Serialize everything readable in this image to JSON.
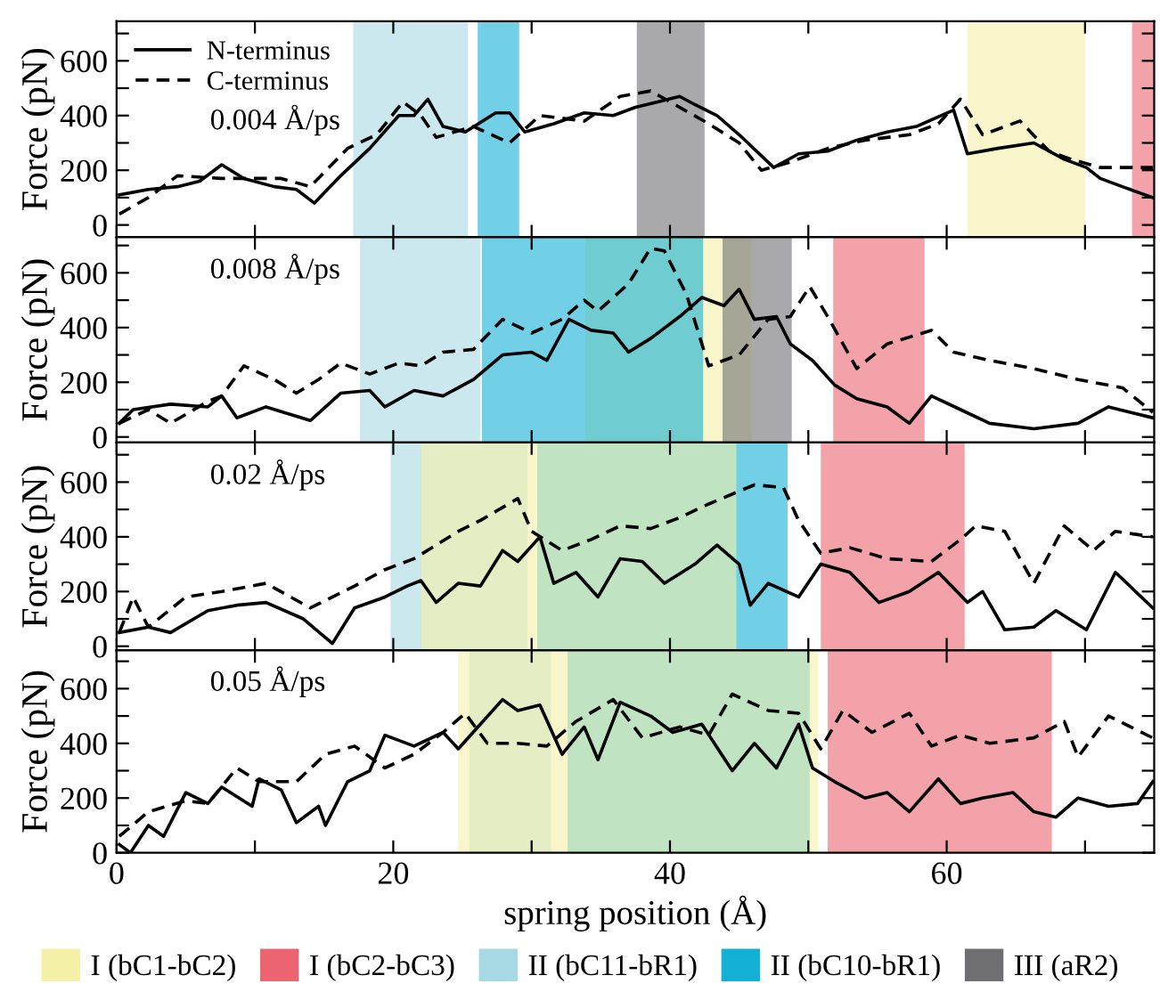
{
  "chart_data": [
    {
      "type": "line",
      "ylabel": "Force (pN)",
      "annotations": [
        "0.004 Å/ps"
      ],
      "legend": "top left",
      "tick_labels": "y",
      "xlim": [
        0,
        75
      ],
      "xticks": [
        {
          "value": 0,
          "label": null
        },
        {
          "value": 10,
          "label": null
        },
        {
          "value": 20,
          "label": null
        },
        {
          "value": 30,
          "label": null
        },
        {
          "value": 40,
          "label": null
        },
        {
          "value": 50,
          "label": null
        },
        {
          "value": 60,
          "label": null
        },
        {
          "value": 70,
          "label": null
        }
      ],
      "ylim": [
        -45,
        745
      ],
      "yticks": [
        0,
        {
          "value": 100,
          "label": null
        },
        200,
        {
          "value": 300,
          "label": null
        },
        400,
        {
          "value": 500,
          "label": null
        },
        600,
        {
          "value": 700,
          "label": null
        }
      ],
      "bands": [
        {
          "axis": "x",
          "from": 61.5,
          "to": 70.0,
          "color": "#f5f0a8"
        },
        {
          "axis": "x",
          "from": 73.4,
          "to": 75,
          "color": "#ec6470"
        },
        {
          "axis": "x",
          "from": 17.1,
          "to": 25.4,
          "color": "#a6d9e3"
        },
        {
          "axis": "x",
          "from": 26.1,
          "to": 29.1,
          "color": "#12b0d4"
        },
        {
          "axis": "x",
          "from": 37.6,
          "to": 42.5,
          "color": "#6f6f73"
        }
      ],
      "series": [
        {
          "name": "N-terminus",
          "color": "#000000",
          "line_style": "solid",
          "x": [
            0.2,
            2.3,
            4.4,
            6.0,
            7.6,
            9.2,
            11.4,
            13.0,
            14.3,
            16.2,
            18.3,
            20.4,
            21.5,
            22.5,
            23.6,
            25.2,
            27.4,
            28.4,
            29.5,
            31.6,
            33.8,
            35.9,
            37.5,
            39.1,
            40.7,
            41.8,
            43.4,
            45.0,
            47.5,
            49.3,
            51.4,
            53.5,
            55.7,
            57.8,
            60.5,
            61.5,
            63.7,
            66.3,
            68.5,
            70.1,
            71.1,
            72.7,
            74.9
          ],
          "values": [
            110,
            130,
            140,
            160,
            220,
            170,
            140,
            130,
            80,
            180,
            280,
            400,
            400,
            460,
            360,
            340,
            410,
            410,
            340,
            370,
            410,
            400,
            430,
            450,
            470,
            440,
            400,
            330,
            210,
            260,
            270,
            310,
            340,
            360,
            420,
            260,
            280,
            300,
            240,
            210,
            170,
            140,
            100
          ]
        },
        {
          "name": "C-terminus",
          "color": "#000000",
          "line_style": "dashed",
          "x": [
            0.2,
            2.3,
            4.4,
            7.6,
            11.9,
            14.0,
            16.7,
            18.8,
            20.7,
            22.0,
            23.1,
            25.8,
            28.4,
            30.6,
            33.8,
            36.4,
            38.6,
            40.7,
            42.8,
            45.0,
            46.6,
            48.7,
            51.4,
            54.1,
            57.3,
            59.4,
            61.0,
            62.6,
            65.3,
            67.4,
            69.0,
            71.1,
            74.9
          ],
          "values": [
            40,
            100,
            180,
            170,
            170,
            140,
            280,
            330,
            450,
            400,
            320,
            360,
            300,
            400,
            380,
            470,
            490,
            430,
            370,
            300,
            200,
            230,
            280,
            310,
            330,
            370,
            460,
            330,
            380,
            270,
            240,
            210,
            210
          ]
        }
      ]
    },
    {
      "type": "line",
      "ylabel": "Force (pN)",
      "annotations": [
        "0.008 Å/ps"
      ],
      "tick_labels": "y",
      "legend": "bottom",
      "xlim": [
        0,
        75
      ],
      "xticks": [
        {
          "value": 0,
          "label": null
        },
        {
          "value": 10,
          "label": null
        },
        {
          "value": 20,
          "label": null
        },
        {
          "value": 30,
          "label": null
        },
        {
          "value": 40,
          "label": null
        },
        {
          "value": 50,
          "label": null
        },
        {
          "value": 60,
          "label": null
        },
        {
          "value": 70,
          "label": null
        }
      ],
      "ylim": [
        -20,
        730
      ],
      "yticks": [
        0,
        {
          "value": 100,
          "label": null
        },
        200,
        {
          "value": 300,
          "label": null
        },
        400,
        {
          "value": 500,
          "label": null
        },
        600,
        {
          "value": 700,
          "label": null
        }
      ],
      "bands": [
        {
          "axis": "x",
          "from": 33.9,
          "to": 45.9,
          "color": "#f5f0a8",
          "label": "I (bC1-bC2)"
        },
        {
          "axis": "x",
          "from": 51.8,
          "to": 58.4,
          "color": "#ec6470",
          "label": "I (bC2-bC3)"
        },
        {
          "axis": "x",
          "from": 17.6,
          "to": 26.3,
          "color": "#a6d9e3",
          "label": "II (bC11-bR1)"
        },
        {
          "axis": "x",
          "from": 26.4,
          "to": 42.4,
          "color": "#12b0d4",
          "label": "II (bC10-bR1)"
        },
        {
          "axis": "x",
          "from": 43.8,
          "to": 48.8,
          "color": "#6f6f73",
          "label": "III (aR2)"
        }
      ],
      "series": [
        {
          "color": "#000000",
          "line_style": "solid",
          "x": [
            0.2,
            1.2,
            3.9,
            6.6,
            7.6,
            8.7,
            10.8,
            14.0,
            16.2,
            18.3,
            19.4,
            21.5,
            23.6,
            25.8,
            27.9,
            30.0,
            31.1,
            32.7,
            34.3,
            35.9,
            37.0,
            38.6,
            40.7,
            42.3,
            43.9,
            45.0,
            46.1,
            47.7,
            48.7,
            50.3,
            51.9,
            53.5,
            55.7,
            57.3,
            58.9,
            61.0,
            63.1,
            66.3,
            69.5,
            71.7,
            74.9
          ],
          "values": [
            50,
            100,
            120,
            110,
            150,
            70,
            110,
            60,
            160,
            170,
            110,
            170,
            150,
            210,
            300,
            310,
            280,
            430,
            390,
            380,
            310,
            360,
            440,
            510,
            480,
            540,
            430,
            440,
            340,
            280,
            190,
            140,
            110,
            50,
            150,
            100,
            50,
            30,
            50,
            110,
            70
          ]
        },
        {
          "color": "#000000",
          "line_style": "dashed",
          "x": [
            0.2,
            2.3,
            3.9,
            6.6,
            7.6,
            9.2,
            11.4,
            13.0,
            14.6,
            16.2,
            18.3,
            20.4,
            22.0,
            23.6,
            25.8,
            27.9,
            30.0,
            32.2,
            33.8,
            34.8,
            37.0,
            38.6,
            39.6,
            41.2,
            42.8,
            45.0,
            47.1,
            48.7,
            50.1,
            51.4,
            53.5,
            55.7,
            58.9,
            60.5,
            63.1,
            66.3,
            69.5,
            72.7,
            74.9
          ],
          "values": [
            50,
            100,
            50,
            130,
            150,
            260,
            210,
            160,
            210,
            270,
            230,
            270,
            260,
            310,
            320,
            430,
            380,
            430,
            500,
            460,
            560,
            690,
            680,
            520,
            260,
            300,
            430,
            440,
            550,
            440,
            250,
            340,
            390,
            310,
            280,
            250,
            210,
            180,
            90
          ]
        }
      ]
    },
    {
      "type": "line",
      "ylabel": "Force (pN)",
      "annotations": [
        "0.02 Å/ps"
      ],
      "tick_labels": "y",
      "xlim": [
        0,
        75
      ],
      "xticks": [
        {
          "value": 0,
          "label": null
        },
        {
          "value": 10,
          "label": null
        },
        {
          "value": 20,
          "label": null
        },
        {
          "value": 30,
          "label": null
        },
        {
          "value": 40,
          "label": null
        },
        {
          "value": 50,
          "label": null
        },
        {
          "value": 60,
          "label": null
        },
        {
          "value": 70,
          "label": null
        }
      ],
      "ylim": [
        -15,
        745
      ],
      "yticks": [
        0,
        {
          "value": 100,
          "label": null
        },
        200,
        {
          "value": 300,
          "label": null
        },
        400,
        {
          "value": 500,
          "label": null
        },
        600,
        {
          "value": 700,
          "label": null
        }
      ],
      "bands": [
        {
          "axis": "x",
          "from": 19.8,
          "to": 29.7,
          "color": "#a6d9e3"
        },
        {
          "axis": "x",
          "from": 30.4,
          "to": 48.5,
          "color": "#12b0d4"
        },
        {
          "axis": "x",
          "from": 22.0,
          "to": 44.8,
          "color": "#f5f0a8"
        },
        {
          "axis": "x",
          "from": 50.9,
          "to": 61.3,
          "color": "#ec6470"
        }
      ],
      "series": [
        {
          "color": "#000000",
          "line_style": "solid",
          "x": [
            0.2,
            2.3,
            3.9,
            6.6,
            8.7,
            10.8,
            13.5,
            15.6,
            17.2,
            19.4,
            21.0,
            22.0,
            23.1,
            24.7,
            26.3,
            27.9,
            29.0,
            30.6,
            31.6,
            33.2,
            34.8,
            36.4,
            38.0,
            39.6,
            41.8,
            43.4,
            45.0,
            45.8,
            47.1,
            49.3,
            50.9,
            53.0,
            55.1,
            57.3,
            59.4,
            61.5,
            62.6,
            64.2,
            66.3,
            67.9,
            70.1,
            72.2,
            74.9
          ],
          "values": [
            50,
            70,
            50,
            130,
            150,
            160,
            100,
            10,
            140,
            180,
            220,
            240,
            160,
            230,
            220,
            350,
            310,
            400,
            230,
            270,
            180,
            320,
            310,
            230,
            300,
            370,
            300,
            150,
            230,
            180,
            300,
            270,
            160,
            200,
            270,
            160,
            200,
            60,
            70,
            130,
            60,
            270,
            140
          ]
        },
        {
          "color": "#000000",
          "line_style": "dashed",
          "x": [
            0.2,
            1.2,
            2.3,
            5.0,
            7.6,
            10.8,
            14.0,
            17.2,
            19.4,
            21.5,
            24.7,
            26.3,
            29.0,
            30.0,
            32.2,
            34.3,
            36.4,
            38.6,
            40.7,
            42.8,
            46.1,
            48.2,
            49.3,
            50.9,
            53.0,
            55.7,
            58.9,
            61.0,
            62.1,
            64.2,
            66.3,
            68.5,
            70.6,
            72.2,
            74.9
          ],
          "values": [
            50,
            180,
            70,
            180,
            200,
            230,
            140,
            220,
            280,
            320,
            420,
            460,
            540,
            420,
            350,
            390,
            440,
            430,
            470,
            520,
            590,
            580,
            460,
            340,
            360,
            320,
            310,
            390,
            440,
            420,
            230,
            440,
            350,
            420,
            400
          ]
        }
      ]
    },
    {
      "type": "line",
      "ylabel": "Force (pN)",
      "xlabel": "spring position (Å)",
      "annotations": [
        "0.05 Å/ps"
      ],
      "xlim": [
        0,
        75
      ],
      "xticks": [
        0,
        {
          "value": 10,
          "label": null
        },
        20,
        {
          "value": 30,
          "label": null
        },
        40,
        {
          "value": 50,
          "label": null
        },
        60,
        {
          "value": 70,
          "label": null
        }
      ],
      "ylim": [
        0,
        740
      ],
      "yticks": [
        0,
        {
          "value": 100,
          "label": null
        },
        200,
        {
          "value": 300,
          "label": null
        },
        400,
        {
          "value": 500,
          "label": null
        },
        600,
        {
          "value": 700,
          "label": null
        }
      ],
      "bands": [
        {
          "axis": "x",
          "from": 25.5,
          "to": 31.4,
          "color": "#a6d9e3"
        },
        {
          "axis": "x",
          "from": 32.6,
          "to": 50.1,
          "color": "#12b0d4"
        },
        {
          "axis": "x",
          "from": 24.7,
          "to": 50.7,
          "color": "#f5f0a8"
        },
        {
          "axis": "x",
          "from": 51.4,
          "to": 67.6,
          "color": "#ec6470"
        }
      ],
      "series": [
        {
          "color": "#000000",
          "line_style": "solid",
          "x": [
            0.2,
            1.0,
            2.3,
            3.4,
            5.0,
            6.6,
            7.6,
            9.8,
            10.3,
            11.9,
            13.0,
            14.6,
            15.1,
            16.7,
            18.3,
            19.4,
            21.5,
            23.6,
            24.7,
            26.3,
            27.9,
            29.0,
            30.6,
            32.2,
            33.8,
            34.8,
            36.4,
            38.6,
            40.2,
            42.3,
            44.5,
            46.1,
            47.7,
            49.3,
            50.3,
            51.9,
            54.1,
            55.7,
            57.3,
            59.4,
            61.0,
            62.6,
            64.8,
            66.3,
            67.9,
            69.5,
            71.7,
            73.8,
            74.9
          ],
          "values": [
            30,
            0,
            100,
            60,
            220,
            180,
            240,
            170,
            270,
            230,
            110,
            170,
            100,
            260,
            300,
            430,
            390,
            440,
            380,
            470,
            560,
            520,
            540,
            360,
            460,
            340,
            550,
            500,
            440,
            470,
            300,
            400,
            310,
            470,
            310,
            260,
            200,
            220,
            150,
            270,
            180,
            200,
            220,
            150,
            130,
            200,
            170,
            180,
            260
          ]
        },
        {
          "color": "#000000",
          "line_style": "dashed",
          "x": [
            0.2,
            2.3,
            5.0,
            6.6,
            8.7,
            10.3,
            13.0,
            15.1,
            17.2,
            19.4,
            21.5,
            23.6,
            25.2,
            26.8,
            29.0,
            31.1,
            33.2,
            35.9,
            38.0,
            40.7,
            42.8,
            44.5,
            47.1,
            49.3,
            50.9,
            52.5,
            54.6,
            57.3,
            58.9,
            61.0,
            63.1,
            66.3,
            68.5,
            69.5,
            71.7,
            74.9
          ],
          "values": [
            60,
            150,
            190,
            180,
            310,
            260,
            260,
            360,
            390,
            310,
            360,
            440,
            510,
            400,
            400,
            390,
            480,
            560,
            420,
            460,
            430,
            580,
            520,
            510,
            380,
            520,
            440,
            510,
            390,
            430,
            400,
            420,
            480,
            350,
            500,
            420
          ]
        }
      ]
    }
  ]
}
